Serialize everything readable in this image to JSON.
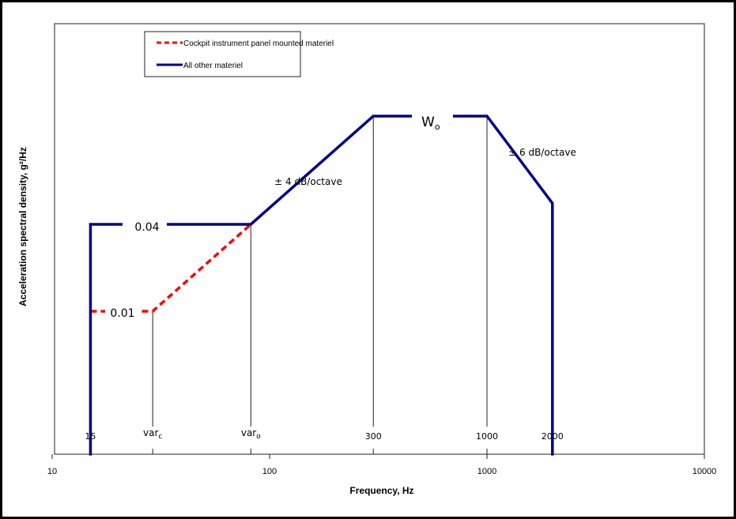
{
  "chart_data": {
    "type": "line",
    "xlabel": "Frequency, Hz",
    "ylabel": "Acceleration spectral density, g²/Hz",
    "xscale": "log",
    "yscale": "log",
    "xlim": [
      10,
      10000
    ],
    "ylim": [
      0.001,
      1
    ],
    "x_ticks": [
      "10",
      "100",
      "1000",
      "10000"
    ],
    "grid": false,
    "legend_position": "top-left",
    "series": [
      {
        "name": "Cockpit instrument panel mounted materiel",
        "color": "#ff0000",
        "style": "dashed",
        "points": [
          [
            15,
            0.01
          ],
          [
            29,
            0.01
          ],
          [
            82,
            0.04
          ]
        ]
      },
      {
        "name": "All other materiel",
        "color": "#00008b",
        "style": "solid",
        "points": [
          [
            15,
            0.001
          ],
          [
            15,
            0.04
          ],
          [
            82,
            0.04
          ],
          [
            300,
            0.225
          ],
          [
            1000,
            0.225
          ],
          [
            2000,
            0.056
          ],
          [
            2000,
            0.001
          ]
        ]
      }
    ],
    "reference_lines": [
      {
        "label": "15",
        "x": 15
      },
      {
        "label": "var",
        "sub": "c",
        "x": 29,
        "top": 0.01
      },
      {
        "label": "var",
        "sub": "o",
        "x": 82,
        "top": 0.04
      },
      {
        "label": "300",
        "x": 300,
        "top": 0.225
      },
      {
        "label": "1000",
        "x": 1000,
        "top": 0.225
      },
      {
        "label": "2000",
        "x": 2000
      }
    ],
    "annotations": {
      "level_high": "0.04",
      "level_low": "0.01",
      "plateau": "W",
      "plateau_sub": "o",
      "slope_up": "± 4 dB/octave",
      "slope_down": "± 6 dB/octave"
    }
  }
}
